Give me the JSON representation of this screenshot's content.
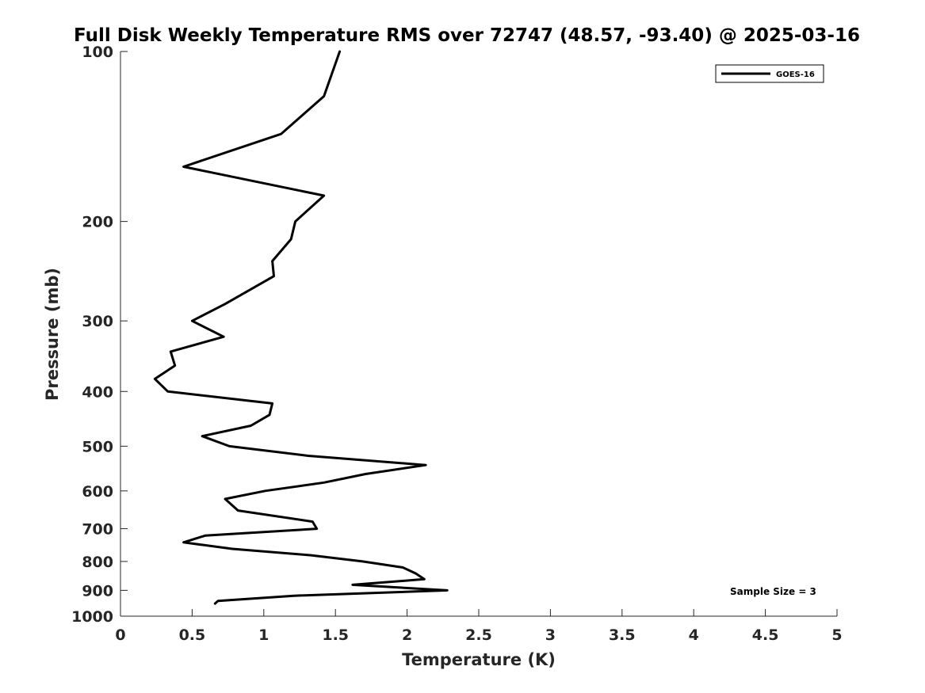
{
  "chart_data": {
    "type": "line",
    "title": "Full Disk Weekly Temperature RMS over 72747 (48.57, -93.40) @ 2025-03-16",
    "xlabel": "Temperature (K)",
    "ylabel": "Pressure (mb)",
    "xlim": [
      0,
      5
    ],
    "ylim": [
      100,
      1000
    ],
    "yscale": "log",
    "x_ticks": [
      0,
      0.5,
      1,
      1.5,
      2,
      2.5,
      3,
      3.5,
      4,
      4.5,
      5
    ],
    "x_tick_labels": [
      "0",
      "0.5",
      "1",
      "1.5",
      "2",
      "2.5",
      "3",
      "3.5",
      "4",
      "4.5",
      "5"
    ],
    "y_ticks": [
      100,
      200,
      300,
      400,
      500,
      600,
      700,
      800,
      900,
      1000
    ],
    "y_tick_labels": [
      "100",
      "200",
      "300",
      "400",
      "500",
      "600",
      "700",
      "800",
      "900",
      "1000"
    ],
    "grid": false,
    "legend": {
      "position": "top-right",
      "entries": [
        "GOES-16"
      ]
    },
    "annotation": "Sample Size = 3",
    "series": [
      {
        "name": "GOES-16",
        "color": "#000000",
        "points": [
          [
            1.53,
            100
          ],
          [
            1.42,
            120
          ],
          [
            1.12,
            140
          ],
          [
            0.44,
            160
          ],
          [
            1.42,
            180
          ],
          [
            1.22,
            200
          ],
          [
            1.19,
            215
          ],
          [
            1.06,
            235
          ],
          [
            1.07,
            250
          ],
          [
            0.73,
            280
          ],
          [
            0.5,
            300
          ],
          [
            0.72,
            320
          ],
          [
            0.35,
            340
          ],
          [
            0.38,
            360
          ],
          [
            0.24,
            380
          ],
          [
            0.33,
            400
          ],
          [
            1.06,
            420
          ],
          [
            1.04,
            440
          ],
          [
            0.91,
            460
          ],
          [
            0.57,
            480
          ],
          [
            0.76,
            500
          ],
          [
            1.31,
            520
          ],
          [
            2.13,
            540
          ],
          [
            1.71,
            560
          ],
          [
            1.42,
            580
          ],
          [
            1.01,
            600
          ],
          [
            0.73,
            620
          ],
          [
            0.82,
            650
          ],
          [
            1.34,
            680
          ],
          [
            1.37,
            700
          ],
          [
            0.59,
            720
          ],
          [
            0.44,
            740
          ],
          [
            0.78,
            760
          ],
          [
            1.33,
            780
          ],
          [
            1.69,
            800
          ],
          [
            1.97,
            820
          ],
          [
            2.06,
            840
          ],
          [
            2.12,
            860
          ],
          [
            1.62,
            880
          ],
          [
            2.28,
            900
          ],
          [
            1.21,
            920
          ],
          [
            0.68,
            940
          ],
          [
            0.66,
            950
          ]
        ]
      }
    ]
  }
}
